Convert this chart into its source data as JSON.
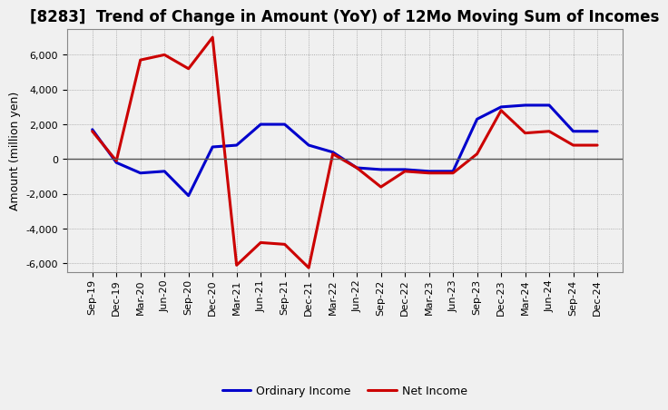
{
  "title": "[8283]  Trend of Change in Amount (YoY) of 12Mo Moving Sum of Incomes",
  "ylabel": "Amount (million yen)",
  "x_labels": [
    "Sep-19",
    "Dec-19",
    "Mar-20",
    "Jun-20",
    "Sep-20",
    "Dec-20",
    "Mar-21",
    "Jun-21",
    "Sep-21",
    "Dec-21",
    "Mar-22",
    "Jun-22",
    "Sep-22",
    "Dec-22",
    "Mar-23",
    "Jun-23",
    "Sep-23",
    "Dec-23",
    "Mar-24",
    "Jun-24",
    "Sep-24",
    "Dec-24"
  ],
  "ordinary_income": [
    1700,
    -200,
    -800,
    -700,
    -2100,
    700,
    800,
    2000,
    2000,
    800,
    400,
    -500,
    -600,
    -600,
    -700,
    -700,
    2300,
    3000,
    3100,
    3100,
    1600,
    1600
  ],
  "net_income": [
    1600,
    -100,
    5700,
    6000,
    5200,
    7000,
    -6100,
    -4800,
    -4900,
    -6250,
    300,
    -500,
    -1600,
    -700,
    -800,
    -800,
    300,
    2800,
    1500,
    1600,
    800,
    800
  ],
  "ordinary_color": "#0000cc",
  "net_color": "#cc0000",
  "ylim": [
    -6500,
    7500
  ],
  "yticks": [
    -6000,
    -4000,
    -2000,
    0,
    2000,
    4000,
    6000
  ],
  "line_width": 2.2,
  "bg_color": "#f0f0f0",
  "plot_bg_color": "#f0f0f0",
  "grid_color": "#999999",
  "legend_ordinary": "Ordinary Income",
  "legend_net": "Net Income",
  "title_fontsize": 12,
  "ylabel_fontsize": 9,
  "tick_fontsize": 8
}
